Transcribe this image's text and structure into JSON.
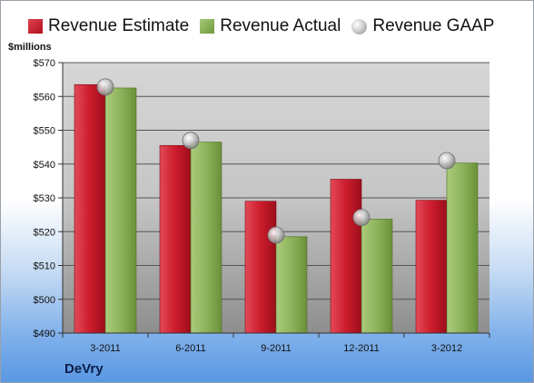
{
  "legend": {
    "estimate": "Revenue Estimate",
    "actual": "Revenue Actual",
    "gaap": "Revenue GAAP"
  },
  "unit_label": "$millions",
  "company": "DeVry",
  "colors": {
    "estimate": "#c8192a",
    "actual": "#8db35c",
    "gaap": "#b0b0b0"
  },
  "chart_data": {
    "type": "bar",
    "categories": [
      "3-2011",
      "6-2011",
      "9-2011",
      "12-2011",
      "3-2012"
    ],
    "series": [
      {
        "name": "Revenue Estimate",
        "values": [
          563.5,
          545.5,
          529,
          535.5,
          529.3
        ]
      },
      {
        "name": "Revenue Actual",
        "values": [
          562.5,
          546.5,
          518.5,
          523.7,
          540.3
        ]
      },
      {
        "name": "Revenue GAAP",
        "values": [
          562.8,
          547,
          519,
          524.2,
          541
        ]
      }
    ],
    "y_ticks": [
      "$490",
      "$500",
      "$510",
      "$520",
      "$530",
      "$540",
      "$550",
      "$560",
      "$570"
    ],
    "ylim": [
      490,
      570
    ],
    "grid": true,
    "legend_position": "top"
  }
}
